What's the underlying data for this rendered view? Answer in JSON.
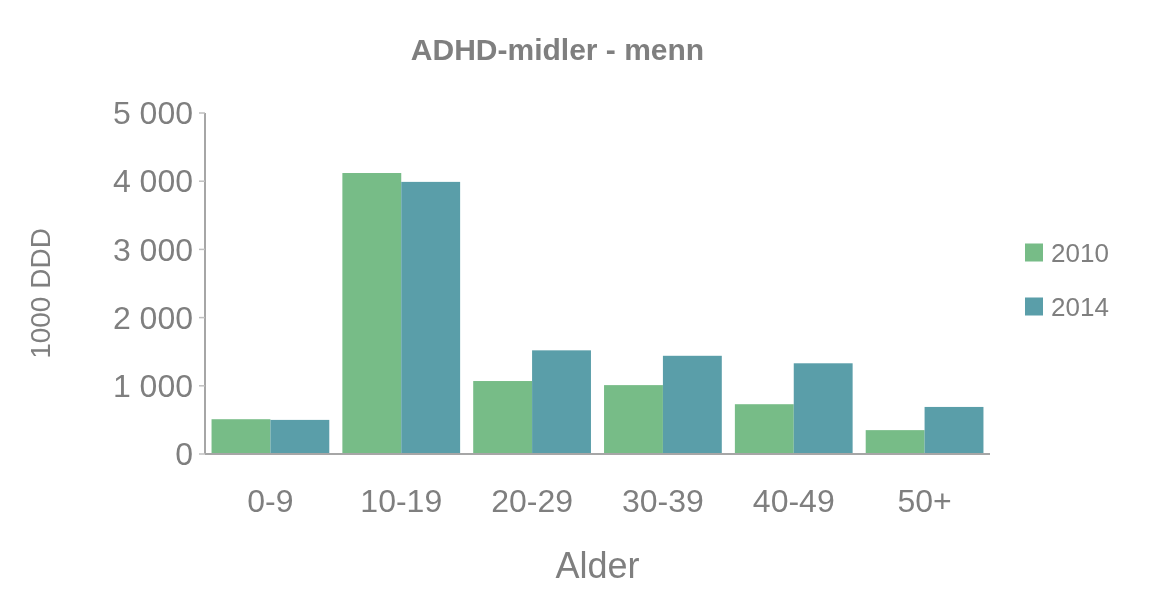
{
  "chart_data": {
    "type": "bar",
    "title": "ADHD-midler - menn",
    "xlabel": "Alder",
    "ylabel": "1000 DDD",
    "categories": [
      "0-9",
      "10-19",
      "20-29",
      "30-39",
      "40-49",
      "50+"
    ],
    "series": [
      {
        "name": "2010",
        "color": "#77bc87",
        "values": [
          510,
          4120,
          1070,
          1010,
          730,
          350
        ]
      },
      {
        "name": "2014",
        "color": "#5a9ea9",
        "values": [
          500,
          3990,
          1520,
          1440,
          1330,
          690
        ]
      }
    ],
    "ylim": [
      0,
      5000
    ],
    "yticks": [
      {
        "value": 0,
        "label": "0"
      },
      {
        "value": 1000,
        "label": "1 000"
      },
      {
        "value": 2000,
        "label": "2 000"
      },
      {
        "value": 3000,
        "label": "3 000"
      },
      {
        "value": 4000,
        "label": "4 000"
      },
      {
        "value": 5000,
        "label": "5 000"
      }
    ],
    "grid": false,
    "legend": "right"
  }
}
